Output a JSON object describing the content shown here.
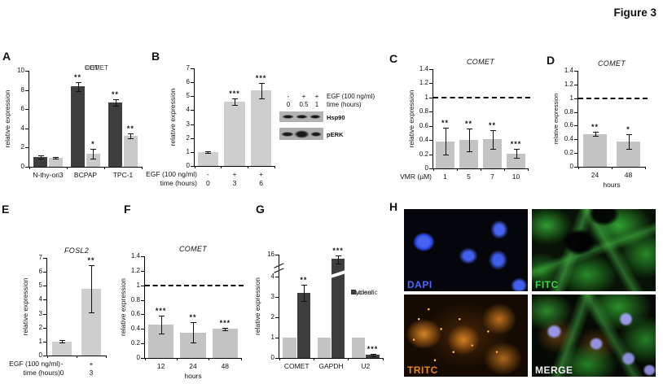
{
  "figure_label": "Figure 3",
  "panel_labels": [
    "A",
    "B",
    "C",
    "D",
    "E",
    "F",
    "G",
    "H"
  ],
  "colors": {
    "dark_bar": "#3e3e3e",
    "light_bar": "#c9c9c9",
    "axis": "#000000"
  },
  "chart_data": [
    {
      "id": "A",
      "type": "bar",
      "title": null,
      "ylabel": "relative expression",
      "ylim": [
        0,
        10
      ],
      "yticks": {
        "values": [
          0,
          2,
          4,
          6,
          8,
          10
        ],
        "labels": [
          "0",
          "2",
          "4",
          "6",
          "8",
          "10"
        ]
      },
      "categories": [
        "N-thy-ori3",
        "BCPAP",
        "TPC-1"
      ],
      "series": [
        {
          "name": "MET",
          "color": "#3e3e3e",
          "values": [
            1.0,
            8.35,
            6.7
          ],
          "errors": [
            0.15,
            0.5,
            0.35
          ],
          "sig": [
            "",
            "**",
            "**"
          ]
        },
        {
          "name": "COMET",
          "color": "#c9c9c9",
          "values": [
            0.95,
            1.35,
            3.2
          ],
          "errors": [
            0.1,
            0.5,
            0.25
          ],
          "sig": [
            "",
            "*",
            "**"
          ]
        }
      ],
      "legend": {
        "position": "top-right",
        "orientation": "h"
      },
      "xaxis": {
        "mode": "simple",
        "labels": [
          "N-thy-ori3",
          "BCPAP",
          "TPC-1"
        ],
        "title": null
      }
    },
    {
      "id": "B",
      "type": "bar",
      "title": null,
      "ylabel": "relative expression",
      "ylim": [
        0,
        7
      ],
      "yticks": {
        "values": [
          0,
          1,
          2,
          3,
          4,
          5,
          6,
          7
        ],
        "labels": [
          "0",
          "1",
          "2",
          "3",
          "4",
          "5",
          "6",
          "7"
        ]
      },
      "categories": [
        "0",
        "3",
        "6"
      ],
      "series": [
        {
          "name": "EGF",
          "color": "#cecece",
          "values": [
            1.0,
            4.6,
            5.4
          ],
          "errors": [
            0.05,
            0.25,
            0.55
          ],
          "sig": [
            "",
            "***",
            "***"
          ]
        }
      ],
      "xaxis": {
        "mode": "rows",
        "rows": [
          {
            "label": "EGF (100 ng/ml)",
            "values": [
              "-",
              "+",
              "+"
            ]
          },
          {
            "label": "time (hours)",
            "values": [
              "0",
              "3",
              "6"
            ]
          }
        ]
      }
    },
    {
      "id": "C",
      "type": "bar",
      "title": {
        "text": "COMET",
        "italic": true
      },
      "ylabel": "relative expression",
      "ylim": [
        0,
        1.4
      ],
      "yticks": {
        "values": [
          0,
          0.2,
          0.4,
          0.6,
          0.8,
          1,
          1.2,
          1.4
        ],
        "labels": [
          "0",
          "0.2",
          "0.4",
          "0.6",
          "0.8",
          "1",
          "1.2",
          "1.4"
        ]
      },
      "refline": 1,
      "categories": [
        "1",
        "5",
        "7",
        "10"
      ],
      "series": [
        {
          "name": "COMET",
          "color": "#c3c3c3",
          "values": [
            0.38,
            0.4,
            0.41,
            0.21
          ],
          "errors": [
            0.19,
            0.16,
            0.13,
            0.06
          ],
          "sig": [
            "**",
            "**",
            "**",
            "***"
          ]
        }
      ],
      "xaxis": {
        "mode": "rows",
        "rows": [
          {
            "label": "VMR (µM)",
            "values": [
              "1",
              "5",
              "7",
              "10"
            ]
          }
        ]
      }
    },
    {
      "id": "D",
      "type": "bar",
      "title": {
        "text": "COMET",
        "italic": true
      },
      "ylabel": "relative expression",
      "ylim": [
        0,
        1.4
      ],
      "yticks": {
        "values": [
          0,
          0.2,
          0.4,
          0.6,
          0.8,
          1,
          1.2,
          1.4
        ],
        "labels": [
          "0",
          "0.2",
          "0.4",
          "0.6",
          "0.8",
          "1",
          "1.2",
          "1.4"
        ]
      },
      "refline": 1,
      "categories": [
        "24",
        "48"
      ],
      "series": [
        {
          "name": "COMET",
          "color": "#c3c3c3",
          "values": [
            0.48,
            0.37
          ],
          "errors": [
            0.03,
            0.11
          ],
          "sig": [
            "**",
            "*"
          ]
        }
      ],
      "xaxis": {
        "mode": "simple",
        "labels": [
          "24",
          "48"
        ],
        "title": "hours"
      }
    },
    {
      "id": "E",
      "type": "bar",
      "title": {
        "text": "FOSL2",
        "italic": true
      },
      "ylabel": "relative expression",
      "ylim": [
        0,
        7
      ],
      "yticks": {
        "values": [
          0,
          1,
          2,
          3,
          4,
          5,
          6,
          7
        ],
        "labels": [
          "0",
          "1",
          "2",
          "3",
          "4",
          "5",
          "6",
          "7"
        ]
      },
      "categories": [
        "0",
        "3"
      ],
      "series": [
        {
          "name": "EGF",
          "color": "#cecece",
          "values": [
            1.0,
            4.8
          ],
          "errors": [
            0.08,
            1.7
          ],
          "sig": [
            "",
            "**"
          ]
        }
      ],
      "xaxis": {
        "mode": "rows",
        "rows": [
          {
            "label": "EGF (100 ng/ml)",
            "values": [
              "-",
              "+"
            ]
          },
          {
            "label": "time (hours)",
            "values": [
              "0",
              "3"
            ]
          }
        ]
      }
    },
    {
      "id": "F",
      "type": "bar",
      "title": {
        "text": "COMET",
        "italic": true
      },
      "ylabel": "relative expression",
      "ylim": [
        0,
        1.4
      ],
      "yticks": {
        "values": [
          0,
          0.2,
          0.4,
          0.6,
          0.8,
          1,
          1.2,
          1.4
        ],
        "labels": [
          "0",
          "0.2",
          "0.4",
          "0.6",
          "0.8",
          "1",
          "1.2",
          "1.4"
        ]
      },
      "refline": 1,
      "categories": [
        "12",
        "24",
        "48"
      ],
      "series": [
        {
          "name": "COMET",
          "color": "#c3c3c3",
          "values": [
            0.46,
            0.35,
            0.4
          ],
          "errors": [
            0.12,
            0.14,
            0.02
          ],
          "sig": [
            "***",
            "**",
            "***"
          ]
        }
      ],
      "xaxis": {
        "mode": "simple",
        "labels": [
          "12",
          "24",
          "48"
        ],
        "title": "hours"
      }
    },
    {
      "id": "G",
      "type": "bar",
      "title": null,
      "ylabel": "relative expression",
      "ylim": [
        0,
        16
      ],
      "yticks": {
        "values": [
          0,
          1,
          2,
          3,
          4
        ],
        "labels": [
          "0",
          "1",
          "2",
          "3",
          "4"
        ]
      },
      "break_lower_max": 4,
      "break_top_label": "16",
      "categories": [
        "COMET",
        "GAPDH",
        "U2"
      ],
      "series": [
        {
          "name": "Nuclear",
          "color": "#c3c3c3",
          "values": [
            1,
            1,
            1
          ],
          "errors": [
            0,
            0,
            0
          ],
          "sig": [
            "",
            "",
            ""
          ]
        },
        {
          "name": "Cytosolic",
          "color": "#3e3e3e",
          "values": [
            3.2,
            15,
            0.15
          ],
          "errors": [
            0.4,
            0.3,
            0.05
          ],
          "sig": [
            "**",
            "***",
            "***"
          ]
        }
      ],
      "legend": {
        "position": "right",
        "orientation": "v"
      },
      "xaxis": {
        "mode": "simple",
        "labels": [
          "COMET",
          "GAPDH",
          "U2"
        ],
        "title": null
      }
    }
  ],
  "blot": {
    "header_rows": [
      {
        "values": [
          "-",
          "+",
          "+"
        ],
        "label": "EGF (100 ng/ml)"
      },
      {
        "values": [
          "0",
          "0.5",
          "1"
        ],
        "label": "time (hours)"
      }
    ],
    "bands": [
      {
        "label": "Hsp90"
      },
      {
        "label": "pERK"
      }
    ]
  },
  "microscopy": {
    "quadrants": [
      {
        "label": "DAPI",
        "color": "#4a66ff"
      },
      {
        "label": "FITC",
        "color": "#3fd43f"
      },
      {
        "label": "TRITC",
        "color": "#e8861a"
      },
      {
        "label": "MERGE",
        "color": "#f2f2f2"
      }
    ]
  }
}
